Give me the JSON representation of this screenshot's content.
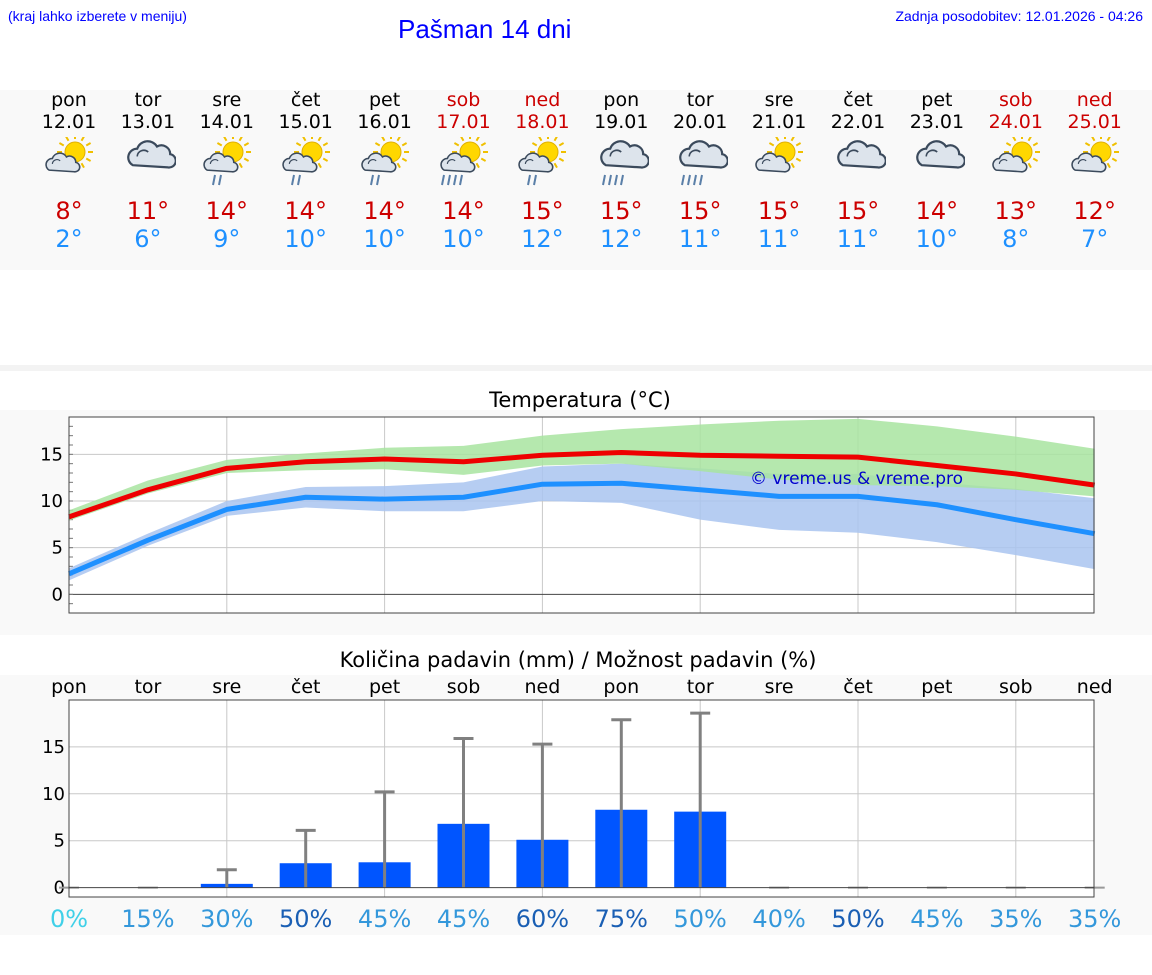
{
  "header": {
    "menu_hint": "(kraj lahko izberete v meniju)",
    "title": "Pašman 14 dni",
    "last_update": "Zadnja posodobitev: 12.01.2026 - 04:26"
  },
  "days": [
    {
      "name": "pon",
      "date": "12.01",
      "weekend": false,
      "icon": "sun-cloud-icon",
      "max": "8°",
      "min": "2°"
    },
    {
      "name": "tor",
      "date": "13.01",
      "weekend": false,
      "icon": "cloud-icon",
      "max": "11°",
      "min": "6°"
    },
    {
      "name": "sre",
      "date": "14.01",
      "weekend": false,
      "icon": "sun-cloud-rain-icon",
      "max": "14°",
      "min": "9°"
    },
    {
      "name": "čet",
      "date": "15.01",
      "weekend": false,
      "icon": "sun-cloud-rain-icon",
      "max": "14°",
      "min": "10°"
    },
    {
      "name": "pet",
      "date": "16.01",
      "weekend": false,
      "icon": "sun-cloud-rain-icon",
      "max": "14°",
      "min": "10°"
    },
    {
      "name": "sob",
      "date": "17.01",
      "weekend": true,
      "icon": "sun-cloud-heavy-rain-icon",
      "max": "14°",
      "min": "10°"
    },
    {
      "name": "ned",
      "date": "18.01",
      "weekend": true,
      "icon": "sun-cloud-rain-icon",
      "max": "15°",
      "min": "12°"
    },
    {
      "name": "pon",
      "date": "19.01",
      "weekend": false,
      "icon": "cloud-heavy-rain-icon",
      "max": "15°",
      "min": "12°"
    },
    {
      "name": "tor",
      "date": "20.01",
      "weekend": false,
      "icon": "cloud-heavy-rain-icon",
      "max": "15°",
      "min": "11°"
    },
    {
      "name": "sre",
      "date": "21.01",
      "weekend": false,
      "icon": "sun-cloud-icon",
      "max": "15°",
      "min": "11°"
    },
    {
      "name": "čet",
      "date": "22.01",
      "weekend": false,
      "icon": "cloud-icon",
      "max": "15°",
      "min": "11°"
    },
    {
      "name": "pet",
      "date": "23.01",
      "weekend": false,
      "icon": "cloud-icon",
      "max": "14°",
      "min": "10°"
    },
    {
      "name": "sob",
      "date": "24.01",
      "weekend": true,
      "icon": "sun-cloud-icon",
      "max": "13°",
      "min": "8°"
    },
    {
      "name": "ned",
      "date": "25.01",
      "weekend": true,
      "icon": "sun-cloud-icon",
      "max": "12°",
      "min": "7°"
    }
  ],
  "colors": {
    "max_line": "#ee0000",
    "max_band": "#a8e4a0",
    "min_line": "#1e90ff",
    "min_band": "#a9c4f0",
    "bar": "#0055ff",
    "error": "#808080",
    "weekend": "#cc0000",
    "tmax": "#cc0000",
    "tmin": "#1e90ff"
  },
  "chart_data": [
    {
      "type": "line",
      "title": "Temperatura (°C)",
      "watermark": "© vreme.us & vreme.pro",
      "ylim": [
        -2,
        19
      ],
      "yticks": [
        0,
        5,
        10,
        15
      ],
      "x": [
        0,
        1,
        2,
        3,
        4,
        5,
        6,
        7,
        8,
        9,
        10,
        11,
        12,
        13
      ],
      "series": [
        {
          "name": "max",
          "values": [
            8.3,
            11.2,
            13.5,
            14.2,
            14.5,
            14.2,
            14.9,
            15.2,
            14.9,
            14.8,
            14.7,
            13.8,
            12.9,
            11.7
          ],
          "band_low": [
            7.9,
            10.8,
            13.0,
            13.3,
            13.4,
            12.8,
            13.8,
            14.0,
            13.2,
            12.3,
            11.7,
            11.6,
            11.2,
            10.5
          ],
          "band_high": [
            9.0,
            12.2,
            14.4,
            15.1,
            15.7,
            15.9,
            17.0,
            17.7,
            18.2,
            18.6,
            18.8,
            18.0,
            16.9,
            15.6
          ]
        },
        {
          "name": "min",
          "values": [
            2.2,
            5.8,
            9.1,
            10.4,
            10.2,
            10.4,
            11.8,
            11.9,
            11.2,
            10.5,
            10.5,
            9.6,
            8.0,
            6.5
          ],
          "band_low": [
            1.5,
            5.2,
            8.4,
            9.3,
            8.9,
            8.9,
            10.0,
            9.8,
            8.0,
            6.9,
            6.6,
            5.6,
            4.2,
            2.7
          ],
          "band_high": [
            2.8,
            6.5,
            10.0,
            11.5,
            11.6,
            12.0,
            13.7,
            14.0,
            13.5,
            12.9,
            12.9,
            12.0,
            11.3,
            10.3
          ]
        }
      ]
    },
    {
      "type": "bar",
      "title": "Količina padavin (mm) / Možnost padavin (%)",
      "ylim": [
        -1,
        20
      ],
      "yticks": [
        0,
        5,
        10,
        15
      ],
      "categories": [
        "pon",
        "tor",
        "sre",
        "čet",
        "pet",
        "sob",
        "ned",
        "pon",
        "tor",
        "sre",
        "čet",
        "pet",
        "sob",
        "ned"
      ],
      "values": [
        0,
        0,
        0.4,
        2.6,
        2.7,
        6.8,
        5.1,
        8.3,
        8.1,
        0,
        0,
        0,
        0,
        0
      ],
      "error_high": [
        0,
        0,
        1.9,
        6.1,
        10.2,
        15.9,
        15.3,
        17.9,
        18.6,
        0,
        0,
        0,
        0,
        0
      ],
      "probability": [
        {
          "label": "0%",
          "color": "#40d0e8"
        },
        {
          "label": "15%",
          "color": "#3498db"
        },
        {
          "label": "30%",
          "color": "#3498db"
        },
        {
          "label": "50%",
          "color": "#1a5fb4"
        },
        {
          "label": "45%",
          "color": "#3498db"
        },
        {
          "label": "45%",
          "color": "#3498db"
        },
        {
          "label": "60%",
          "color": "#1a5fb4"
        },
        {
          "label": "75%",
          "color": "#1a5fb4"
        },
        {
          "label": "50%",
          "color": "#3498db"
        },
        {
          "label": "40%",
          "color": "#3498db"
        },
        {
          "label": "50%",
          "color": "#1a5fb4"
        },
        {
          "label": "45%",
          "color": "#3498db"
        },
        {
          "label": "35%",
          "color": "#3498db"
        },
        {
          "label": "35%",
          "color": "#3498db"
        }
      ]
    }
  ]
}
